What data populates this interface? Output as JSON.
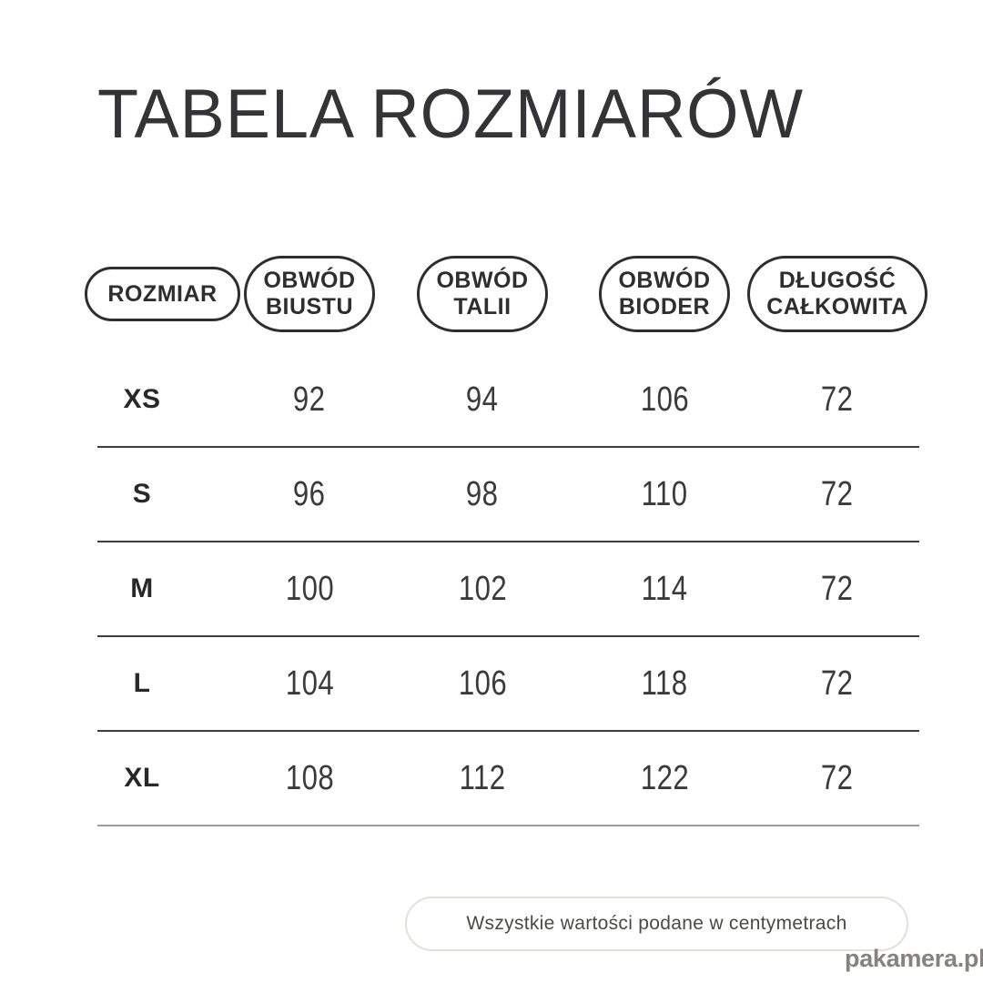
{
  "title": "TABELA ROZMIARÓW",
  "table": {
    "columns": [
      {
        "label": "ROZMIAR",
        "line1": "ROZMIAR"
      },
      {
        "label": "OBWÓD BIUSTU",
        "line1": "OBWÓD",
        "line2": "BIUSTU"
      },
      {
        "label": "OBWÓD TALII",
        "line1": "OBWÓD",
        "line2": "TALII"
      },
      {
        "label": "OBWÓD BIODER",
        "line1": "OBWÓD",
        "line2": "BIODER"
      },
      {
        "label": "DŁUGOŚĆ CAŁKOWITA",
        "line1": "DŁUGOŚĆ",
        "line2": "CAŁKOWITA"
      }
    ],
    "rows": [
      {
        "size": "XS",
        "bust": "92",
        "waist": "94",
        "hips": "106",
        "length": "72"
      },
      {
        "size": "S",
        "bust": "96",
        "waist": "98",
        "hips": "110",
        "length": "72"
      },
      {
        "size": "M",
        "bust": "100",
        "waist": "102",
        "hips": "114",
        "length": "72"
      },
      {
        "size": "L",
        "bust": "104",
        "waist": "106",
        "hips": "118",
        "length": "72"
      },
      {
        "size": "XL",
        "bust": "108",
        "waist": "112",
        "hips": "122",
        "length": "72"
      }
    ]
  },
  "footer": {
    "note": "Wszystkie wartości podane w centymetrach"
  },
  "watermark": "pakamera.pl",
  "colors": {
    "title_text": "#333338",
    "pill_border": "#2e2e2e",
    "row_separator": "#3e3e3e",
    "last_row_separator": "#9c9c9c",
    "value_text": "#3a3a3a",
    "footer_border": "#e4e1db",
    "footer_text": "#4a4a46",
    "watermark_text": "#87827e",
    "background": "#ffffff"
  },
  "chart_data": {
    "type": "table",
    "title": "TABELA ROZMIARÓW",
    "columns": [
      "ROZMIAR",
      "OBWÓD BIUSTU",
      "OBWÓD TALII",
      "OBWÓD BIODER",
      "DŁUGOŚĆ CAŁKOWITA"
    ],
    "categories": [
      "XS",
      "S",
      "M",
      "L",
      "XL"
    ],
    "series": [
      {
        "name": "OBWÓD BIUSTU",
        "values": [
          92,
          96,
          100,
          104,
          108
        ]
      },
      {
        "name": "OBWÓD TALII",
        "values": [
          94,
          98,
          102,
          106,
          112
        ]
      },
      {
        "name": "OBWÓD BIODER",
        "values": [
          106,
          110,
          114,
          118,
          122
        ]
      },
      {
        "name": "DŁUGOŚĆ CAŁKOWITA",
        "values": [
          72,
          72,
          72,
          72,
          72
        ]
      }
    ],
    "unit_note": "Wszystkie wartości podane w centymetrach"
  }
}
